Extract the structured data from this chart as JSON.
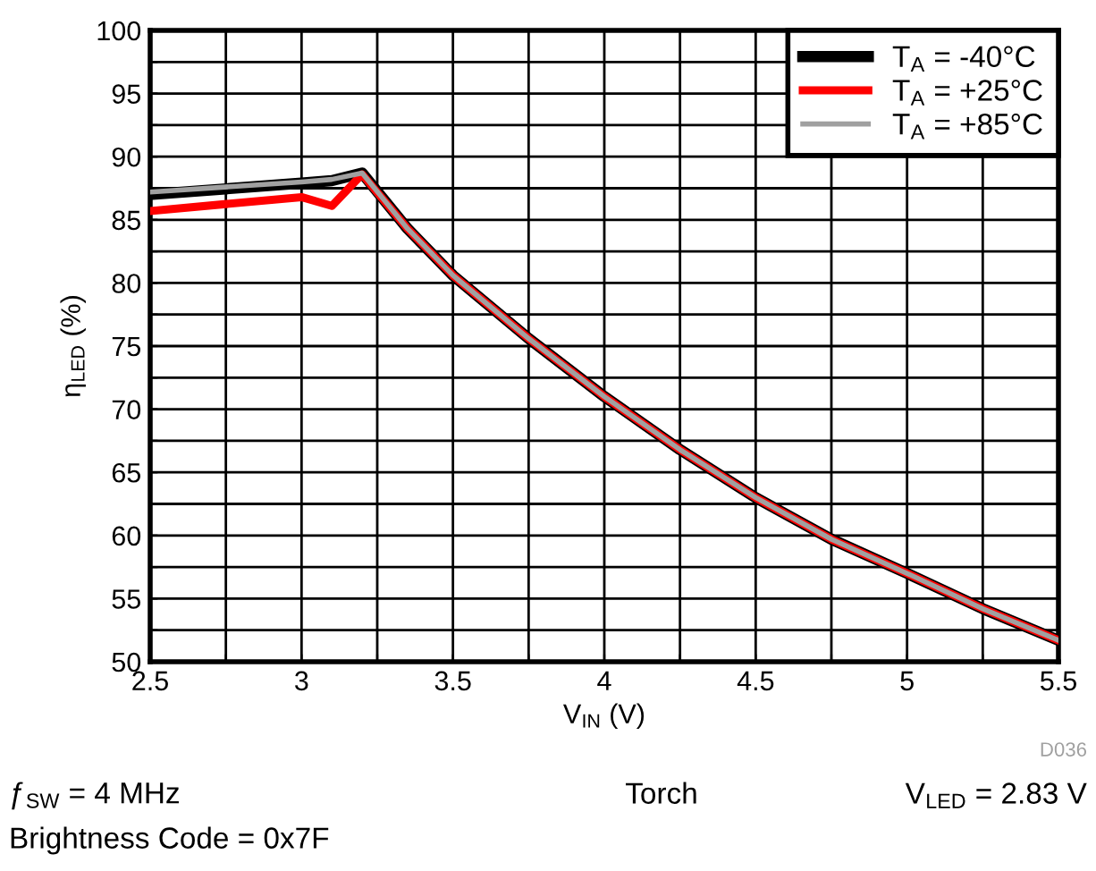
{
  "chart_data": {
    "type": "line",
    "xlabel": "V$_{IN}$ (V)",
    "ylabel": "η$_{LED}$ (%)",
    "xlim": [
      2.5,
      5.5
    ],
    "ylim": [
      50,
      100
    ],
    "xticks": [
      2.5,
      {
        "value": 2.75,
        "label": null
      },
      3,
      {
        "value": 3.25,
        "label": null
      },
      3.5,
      {
        "value": 3.75,
        "label": null
      },
      4,
      {
        "value": 4.25,
        "label": null
      },
      4.5,
      {
        "value": 4.75,
        "label": null
      },
      5,
      {
        "value": 5.25,
        "label": null
      },
      5.5
    ],
    "yticks": [
      50,
      {
        "value": 52.5,
        "label": null
      },
      55,
      {
        "value": 57.5,
        "label": null
      },
      60,
      {
        "value": 62.5,
        "label": null
      },
      65,
      {
        "value": 67.5,
        "label": null
      },
      70,
      {
        "value": 72.5,
        "label": null
      },
      75,
      {
        "value": 77.5,
        "label": null
      },
      80,
      {
        "value": 82.5,
        "label": null
      },
      85,
      {
        "value": 87.5,
        "label": null
      },
      90,
      {
        "value": 92.5,
        "label": null
      },
      95,
      {
        "value": 97.5,
        "label": null
      },
      100
    ],
    "grid": true,
    "legend": "top right",
    "marker": "none",
    "line_style": "solid",
    "series": [
      {
        "name": "T$_{A}$ = -40°C",
        "color": "#000000",
        "x": [
          2.5,
          3.0,
          3.1,
          3.2,
          3.35,
          3.5,
          3.75,
          4.0,
          4.25,
          4.5,
          4.75,
          5.0,
          5.25,
          5.5
        ],
        "values": [
          87.0,
          87.9,
          88.1,
          88.7,
          84.3,
          80.6,
          75.6,
          71.0,
          66.8,
          63.0,
          59.7,
          57.0,
          54.2,
          51.7
        ]
      },
      {
        "name": "T$_{A}$ = +25°C",
        "color": "#ff0000",
        "x": [
          2.5,
          3.0,
          3.1,
          3.2,
          3.35,
          3.5,
          3.75,
          4.0,
          4.25,
          4.5,
          4.75,
          5.0,
          5.25,
          5.5
        ],
        "values": [
          85.7,
          86.8,
          86.1,
          88.6,
          84.3,
          80.6,
          75.6,
          71.0,
          66.8,
          63.0,
          59.7,
          57.0,
          54.2,
          51.7
        ]
      },
      {
        "name": "T$_{A}$ = +85°C",
        "color": "#a0a0a0",
        "x": [
          2.5,
          3.0,
          3.1,
          3.2,
          3.35,
          3.5,
          3.75,
          4.0,
          4.25,
          4.5,
          4.75,
          5.0,
          5.25,
          5.5
        ],
        "values": [
          87.2,
          88.0,
          88.2,
          88.7,
          84.3,
          80.6,
          75.6,
          71.0,
          66.8,
          63.0,
          59.7,
          57.0,
          54.2,
          51.7
        ]
      }
    ],
    "annotations": [
      "D036",
      "ƒ$_{SW}$ = 4 MHz",
      "Torch",
      "V$_{LED}$ = 2.83 V",
      "Brightness Code = 0x7F"
    ]
  }
}
